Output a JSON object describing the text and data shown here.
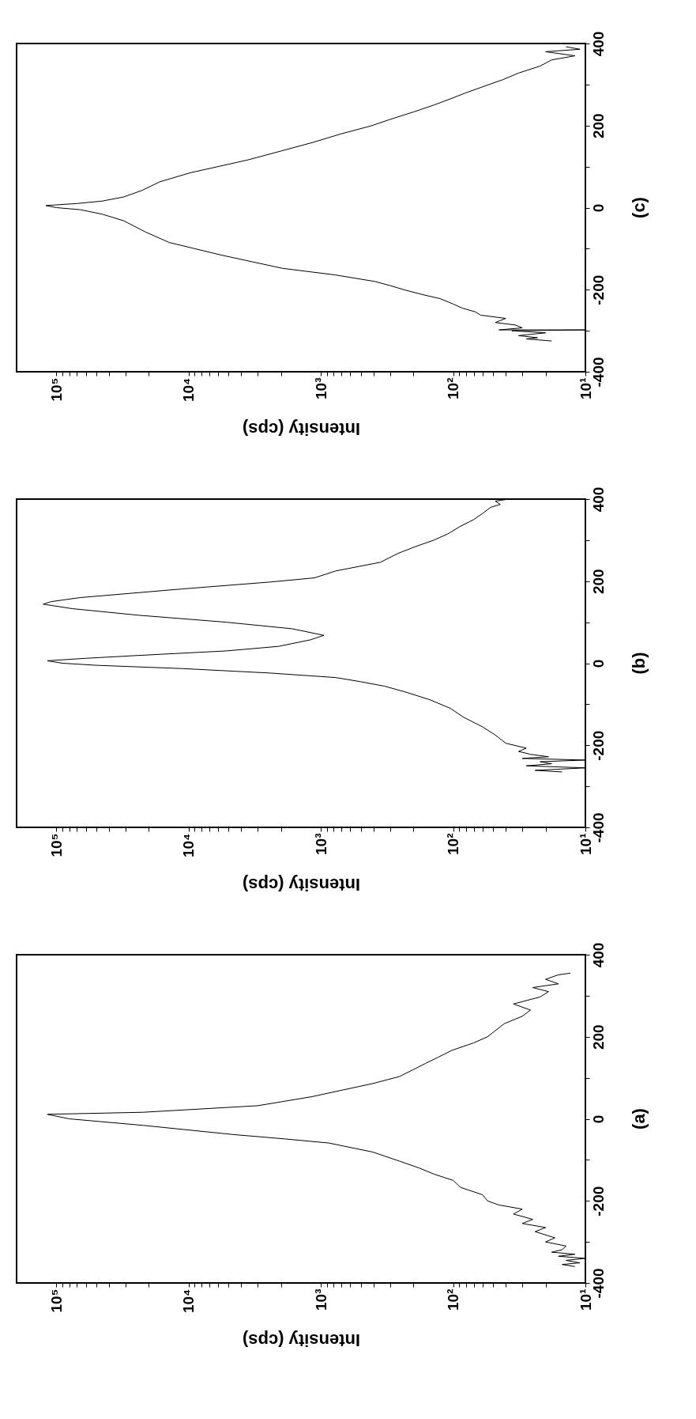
{
  "chart_data": [
    {
      "type": "line",
      "xlabel": "Intensity (cps)",
      "annotations": [
        "(c)"
      ],
      "log": "x",
      "grid": false,
      "ylim": [
        -400,
        400
      ],
      "yticks": [
        -400,
        {
          "value": -300,
          "label": null
        },
        -200,
        {
          "value": -100,
          "label": null
        },
        0,
        {
          "value": 100,
          "label": null
        },
        200,
        {
          "value": 300,
          "label": null
        },
        400
      ],
      "xlim": [
        200000,
        10
      ],
      "xticks": [
        {
          "value": 10,
          "label": "10¹"
        },
        {
          "value": 20,
          "label": null
        },
        {
          "value": 30,
          "label": null
        },
        {
          "value": 40,
          "label": null
        },
        {
          "value": 50,
          "label": null
        },
        {
          "value": 60,
          "label": null
        },
        {
          "value": 70,
          "label": null
        },
        {
          "value": 80,
          "label": null
        },
        {
          "value": 90,
          "label": null
        },
        {
          "value": 100,
          "label": "10²"
        },
        {
          "value": 200,
          "label": null
        },
        {
          "value": 300,
          "label": null
        },
        {
          "value": 400,
          "label": null
        },
        {
          "value": 500,
          "label": null
        },
        {
          "value": 600,
          "label": null
        },
        {
          "value": 700,
          "label": null
        },
        {
          "value": 800,
          "label": null
        },
        {
          "value": 900,
          "label": null
        },
        {
          "value": 1000,
          "label": "10³"
        },
        {
          "value": 2000,
          "label": null
        },
        {
          "value": 3000,
          "label": null
        },
        {
          "value": 4000,
          "label": null
        },
        {
          "value": 5000,
          "label": null
        },
        {
          "value": 6000,
          "label": null
        },
        {
          "value": 7000,
          "label": null
        },
        {
          "value": 8000,
          "label": null
        },
        {
          "value": 9000,
          "label": null
        },
        {
          "value": 10000,
          "label": "10⁴"
        },
        {
          "value": 20000,
          "label": null
        },
        {
          "value": 30000,
          "label": null
        },
        {
          "value": 40000,
          "label": null
        },
        {
          "value": 50000,
          "label": null
        },
        {
          "value": 60000,
          "label": null
        },
        {
          "value": 70000,
          "label": null
        },
        {
          "value": 80000,
          "label": null
        },
        {
          "value": 90000,
          "label": null
        },
        {
          "value": 100000,
          "label": "10⁵"
        }
      ],
      "series": [
        {
          "color": "#000000",
          "x": [
            18,
            28,
            23,
            32,
            20,
            36,
            10,
            45,
            30,
            34,
            48,
            40,
            62,
            68,
            85,
            100,
            125,
            170,
            230,
            300,
            390,
            780,
            1950,
            3300,
            5600,
            9000,
            14000,
            21000,
            31000,
            45000,
            66000,
            100000,
            120000,
            70000,
            45000,
            31000,
            22500,
            16500,
            9700,
            6000,
            3600,
            2000,
            1150,
            700,
            420,
            300,
            200,
            140,
            105,
            80,
            58,
            42,
            32,
            22,
            18,
            12,
            20,
            11,
            14
          ],
          "values": [
            -325,
            -320,
            -317,
            -312,
            -305,
            -300,
            -298,
            -298,
            -293,
            -286,
            -280,
            -270,
            -262,
            -254,
            -245,
            -235,
            -222,
            -212,
            -201,
            -190,
            -180,
            -164,
            -148,
            -132,
            -116,
            -100,
            -85,
            -60,
            -32,
            -16,
            -5,
            0,
            5,
            10,
            16,
            26,
            42,
            63,
            85,
            100,
            116,
            138,
            159,
            180,
            199,
            215,
            233,
            250,
            265,
            280,
            296,
            312,
            328,
            345,
            360,
            370,
            380,
            386,
            392
          ]
        }
      ]
    },
    {
      "type": "line",
      "xlabel": "Intensity (cps)",
      "annotations": [
        "(b)"
      ],
      "log": "x",
      "grid": false,
      "ylim": [
        -400,
        400
      ],
      "yticks": [
        -400,
        {
          "value": -300,
          "label": null
        },
        -200,
        {
          "value": -100,
          "label": null
        },
        0,
        {
          "value": 100,
          "label": null
        },
        200,
        {
          "value": 300,
          "label": null
        },
        400
      ],
      "xlim": [
        200000,
        10
      ],
      "xticks": [
        {
          "value": 10,
          "label": "10¹"
        },
        {
          "value": 20,
          "label": null
        },
        {
          "value": 30,
          "label": null
        },
        {
          "value": 40,
          "label": null
        },
        {
          "value": 50,
          "label": null
        },
        {
          "value": 60,
          "label": null
        },
        {
          "value": 70,
          "label": null
        },
        {
          "value": 80,
          "label": null
        },
        {
          "value": 90,
          "label": null
        },
        {
          "value": 100,
          "label": "10²"
        },
        {
          "value": 200,
          "label": null
        },
        {
          "value": 300,
          "label": null
        },
        {
          "value": 400,
          "label": null
        },
        {
          "value": 500,
          "label": null
        },
        {
          "value": 600,
          "label": null
        },
        {
          "value": 700,
          "label": null
        },
        {
          "value": 800,
          "label": null
        },
        {
          "value": 900,
          "label": null
        },
        {
          "value": 1000,
          "label": "10³"
        },
        {
          "value": 2000,
          "label": null
        },
        {
          "value": 3000,
          "label": null
        },
        {
          "value": 4000,
          "label": null
        },
        {
          "value": 5000,
          "label": null
        },
        {
          "value": 6000,
          "label": null
        },
        {
          "value": 7000,
          "label": null
        },
        {
          "value": 8000,
          "label": null
        },
        {
          "value": 9000,
          "label": null
        },
        {
          "value": 10000,
          "label": "10⁴"
        },
        {
          "value": 20000,
          "label": null
        },
        {
          "value": 30000,
          "label": null
        },
        {
          "value": 40000,
          "label": null
        },
        {
          "value": 50000,
          "label": null
        },
        {
          "value": 60000,
          "label": null
        },
        {
          "value": 70000,
          "label": null
        },
        {
          "value": 80000,
          "label": null
        },
        {
          "value": 90000,
          "label": null
        },
        {
          "value": 100000,
          "label": "10⁵"
        }
      ],
      "series": [
        {
          "color": "#000000",
          "x": [
            15,
            24,
            10,
            28,
            18,
            22,
            10,
            30,
            19,
            26,
            32,
            28,
            40,
            48,
            60,
            83,
            105,
            150,
            230,
            330,
            500,
            770,
            2400,
            11200,
            50000,
            90000,
            117000,
            60000,
            24000,
            5200,
            2100,
            1200,
            950,
            1650,
            5200,
            24000,
            76000,
            126000,
            110000,
            66000,
            11200,
            2400,
            1120,
            770,
            355,
            260,
            190,
            140,
            110,
            89,
            70,
            60,
            52,
            44,
            48,
            38
          ],
          "values": [
            -265,
            -261,
            -255,
            -250,
            -245,
            -240,
            -236,
            -232,
            -228,
            -222,
            -215,
            -207,
            -195,
            -175,
            -155,
            -132,
            -110,
            -89,
            -70,
            -56,
            -45,
            -35,
            -24,
            -13,
            -5,
            0,
            6,
            12,
            19,
            30,
            41,
            57,
            68,
            84,
            100,
            117,
            133,
            144,
            150,
            160,
            181,
            198,
            208,
            225,
            246,
            268,
            285,
            300,
            315,
            333,
            350,
            365,
            380,
            387,
            395,
            400
          ]
        }
      ]
    },
    {
      "type": "line",
      "xlabel": "Intensity (cps)",
      "annotations": [
        "(a)"
      ],
      "log": "x",
      "grid": false,
      "ylim": [
        -400,
        400
      ],
      "yticks": [
        -400,
        {
          "value": -300,
          "label": null
        },
        -200,
        {
          "value": -100,
          "label": null
        },
        0,
        {
          "value": 100,
          "label": null
        },
        200,
        {
          "value": 300,
          "label": null
        },
        400
      ],
      "xlim": [
        200000,
        10
      ],
      "xticks": [
        {
          "value": 10,
          "label": "10¹"
        },
        {
          "value": 20,
          "label": null
        },
        {
          "value": 30,
          "label": null
        },
        {
          "value": 40,
          "label": null
        },
        {
          "value": 50,
          "label": null
        },
        {
          "value": 60,
          "label": null
        },
        {
          "value": 70,
          "label": null
        },
        {
          "value": 80,
          "label": null
        },
        {
          "value": 90,
          "label": null
        },
        {
          "value": 100,
          "label": "10²"
        },
        {
          "value": 200,
          "label": null
        },
        {
          "value": 300,
          "label": null
        },
        {
          "value": 400,
          "label": null
        },
        {
          "value": 500,
          "label": null
        },
        {
          "value": 600,
          "label": null
        },
        {
          "value": 700,
          "label": null
        },
        {
          "value": 800,
          "label": null
        },
        {
          "value": 900,
          "label": null
        },
        {
          "value": 1000,
          "label": "10³"
        },
        {
          "value": 2000,
          "label": null
        },
        {
          "value": 3000,
          "label": null
        },
        {
          "value": 4000,
          "label": null
        },
        {
          "value": 5000,
          "label": null
        },
        {
          "value": 6000,
          "label": null
        },
        {
          "value": 7000,
          "label": null
        },
        {
          "value": 8000,
          "label": null
        },
        {
          "value": 9000,
          "label": null
        },
        {
          "value": 10000,
          "label": "10⁴"
        },
        {
          "value": 20000,
          "label": null
        },
        {
          "value": 30000,
          "label": null
        },
        {
          "value": 40000,
          "label": null
        },
        {
          "value": 50000,
          "label": null
        },
        {
          "value": 60000,
          "label": null
        },
        {
          "value": 70000,
          "label": null
        },
        {
          "value": 80000,
          "label": null
        },
        {
          "value": 90000,
          "label": null
        },
        {
          "value": 100000,
          "label": "10⁵"
        }
      ],
      "series": [
        {
          "color": "#000000",
          "x": [
            12,
            15,
            11,
            14,
            10,
            16,
            12,
            18,
            15,
            14,
            20,
            17,
            24,
            20,
            30,
            25,
            35,
            30,
            45,
            55,
            60,
            88,
            100,
            139,
            180,
            255,
            405,
            870,
            1870,
            4700,
            22000,
            80000,
            117000,
            22000,
            3000,
            1870,
            1170,
            690,
            405,
            255,
            200,
            162,
            130,
            102,
            70,
            55,
            48,
            41,
            30,
            26,
            35,
            22,
            19,
            25,
            16,
            20,
            16,
            13
          ],
          "values": [
            -360,
            -355,
            -351,
            -345,
            -340,
            -335,
            -330,
            -325,
            -319,
            -310,
            -300,
            -290,
            -275,
            -265,
            -255,
            -245,
            -232,
            -220,
            -210,
            -200,
            -185,
            -167,
            -150,
            -135,
            -120,
            -103,
            -81,
            -59,
            -49,
            -38,
            -16,
            0,
            11,
            16,
            32,
            43,
            54,
            70,
            86,
            103,
            120,
            135,
            150,
            167,
            185,
            200,
            215,
            232,
            250,
            265,
            280,
            297,
            310,
            320,
            329,
            340,
            351,
            355
          ]
        }
      ]
    }
  ]
}
